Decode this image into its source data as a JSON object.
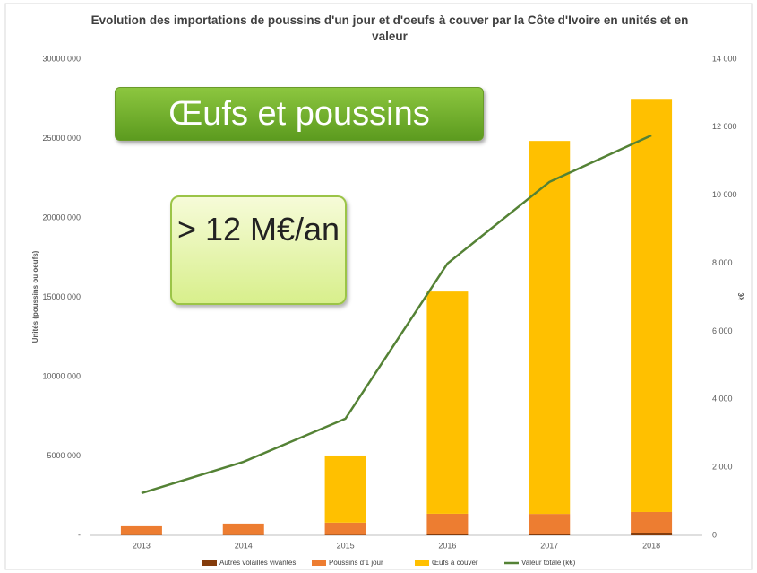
{
  "chart_data": {
    "type": "bar",
    "title": "Evolution des importations de poussins d'un jour et d'oeufs à couver par la Côte d'Ivoire en unités et en valeur",
    "ylabel": "Unités (poussins ou oeufs)",
    "y2label": "k€",
    "categories": [
      "2013",
      "2014",
      "2015",
      "2016",
      "2017",
      "2018"
    ],
    "series": [
      {
        "name": "Autres volailles vivantes",
        "color": "#843c0c",
        "values": [
          20000,
          20000,
          30000,
          80000,
          100000,
          170000
        ]
      },
      {
        "name": "Poussins d'1 jour",
        "color": "#ed7d31",
        "values": [
          550000,
          720000,
          770000,
          1280000,
          1250000,
          1300000
        ]
      },
      {
        "name": "Œufs à couver",
        "color": "#ffc000",
        "values": [
          0,
          0,
          4230000,
          14000000,
          23500000,
          26030000
        ]
      },
      {
        "name": "Valeur totale (k€)",
        "color": "#548235",
        "axis": "y2",
        "type": "line",
        "values": [
          1240,
          2160,
          3430,
          7990,
          10390,
          11760
        ]
      }
    ],
    "ylim": [
      0,
      30000000
    ],
    "yticks": [
      {
        "value": 0,
        "label": "-"
      },
      {
        "value": 5000000,
        "label": "5000 000"
      },
      {
        "value": 10000000,
        "label": "10000 000"
      },
      {
        "value": 15000000,
        "label": "15000 000"
      },
      {
        "value": 20000000,
        "label": "20000 000"
      },
      {
        "value": 25000000,
        "label": "25000 000"
      },
      {
        "value": 30000000,
        "label": "30000 000"
      }
    ],
    "y2lim": [
      0,
      14000
    ],
    "y2ticks": [
      0,
      {
        "value": 2000,
        "label": "2 000"
      },
      {
        "value": 4000,
        "label": "4 000"
      },
      {
        "value": 6000,
        "label": "6 000"
      },
      {
        "value": 8000,
        "label": "8 000"
      },
      {
        "value": 10000,
        "label": "10 000"
      },
      {
        "value": 12000,
        "label": "12 000"
      },
      {
        "value": 14000,
        "label": "14 000"
      }
    ],
    "annotations": [
      "Œufs et poussins",
      "> 12 M€/an"
    ]
  }
}
